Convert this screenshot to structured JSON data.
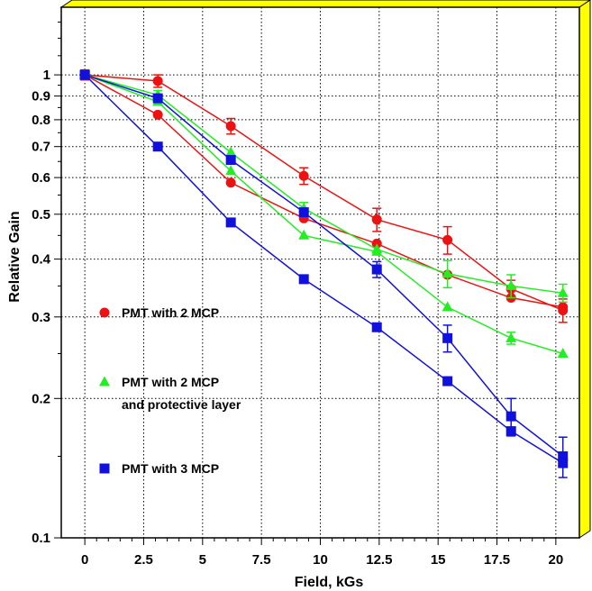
{
  "chart_data": {
    "type": "scatter",
    "title": "",
    "xlabel": "Field, kGs",
    "ylabel": "Relative Gain",
    "xlim": [
      -1,
      21
    ],
    "ylim": [
      0.1,
      1.4
    ],
    "yscale": "log",
    "grid": true,
    "frame_color": "#ffff00",
    "x_ticks": [
      0,
      2.5,
      5,
      7.5,
      10,
      12.5,
      15,
      17.5,
      20
    ],
    "x_tick_labels": [
      "0",
      "2.5",
      "5",
      "7.5",
      "10",
      "12.5",
      "15",
      "17.5",
      "20"
    ],
    "y_ticks": [
      0.1,
      0.2,
      0.3,
      0.4,
      0.5,
      0.6,
      0.7,
      0.8,
      0.9,
      1
    ],
    "y_tick_labels": [
      "0.1",
      "0.2",
      "0.3",
      "0.4",
      "0.5",
      "0.6",
      "0.7",
      "0.8",
      "0.9",
      "1"
    ],
    "legend_entries": [
      {
        "lines": [
          "PMT with 2 MCP"
        ],
        "marker": "circle",
        "color": "#ee1111"
      },
      {
        "lines": [
          "PMT with 2 MCP",
          "and protective layer"
        ],
        "marker": "triangle",
        "color": "#22ee22"
      },
      {
        "lines": [
          "PMT with 3 MCP"
        ],
        "marker": "square",
        "color": "#1111dd"
      }
    ],
    "series": [
      {
        "marker": "circle",
        "color": "#ee1111",
        "points": [
          {
            "x": 0,
            "y": 1.0,
            "err": 0.025
          },
          {
            "x": 3.1,
            "y": 0.97,
            "err": 0.03
          },
          {
            "x": 6.2,
            "y": 0.775,
            "err": 0.03
          },
          {
            "x": 9.3,
            "y": 0.605,
            "err": 0.025
          },
          {
            "x": 12.4,
            "y": 0.487,
            "err": 0.028
          },
          {
            "x": 15.4,
            "y": 0.44,
            "err": 0.03
          },
          {
            "x": 18.1,
            "y": 0.345,
            "err": 0.015
          },
          {
            "x": 20.3,
            "y": 0.31,
            "err": 0.018
          }
        ]
      },
      {
        "marker": "circle",
        "color": "#ee1111",
        "points": [
          {
            "x": 0,
            "y": 1.0
          },
          {
            "x": 3.1,
            "y": 0.82
          },
          {
            "x": 6.2,
            "y": 0.585
          },
          {
            "x": 9.3,
            "y": 0.49
          },
          {
            "x": 12.4,
            "y": 0.432
          },
          {
            "x": 15.4,
            "y": 0.37
          },
          {
            "x": 18.1,
            "y": 0.33
          },
          {
            "x": 20.3,
            "y": 0.315
          }
        ]
      },
      {
        "marker": "triangle",
        "color": "#22ee22",
        "points": [
          {
            "x": 0,
            "y": 1.0
          },
          {
            "x": 3.1,
            "y": 0.905,
            "err": 0.02
          },
          {
            "x": 6.2,
            "y": 0.68
          },
          {
            "x": 9.3,
            "y": 0.515,
            "err": 0.015
          },
          {
            "x": 12.4,
            "y": 0.42
          },
          {
            "x": 15.4,
            "y": 0.372,
            "err": 0.025
          },
          {
            "x": 18.1,
            "y": 0.35,
            "err": 0.02
          },
          {
            "x": 20.3,
            "y": 0.338,
            "err": 0.015
          }
        ]
      },
      {
        "marker": "triangle",
        "color": "#22ee22",
        "points": [
          {
            "x": 0,
            "y": 1.0
          },
          {
            "x": 3.1,
            "y": 0.875
          },
          {
            "x": 6.2,
            "y": 0.62
          },
          {
            "x": 9.3,
            "y": 0.45
          },
          {
            "x": 12.4,
            "y": 0.415
          },
          {
            "x": 15.4,
            "y": 0.315
          },
          {
            "x": 18.1,
            "y": 0.27,
            "err": 0.008
          },
          {
            "x": 20.3,
            "y": 0.25
          }
        ]
      },
      {
        "marker": "square",
        "color": "#1111dd",
        "points": [
          {
            "x": 0,
            "y": 1.0
          },
          {
            "x": 3.1,
            "y": 0.89
          },
          {
            "x": 6.2,
            "y": 0.655
          },
          {
            "x": 9.3,
            "y": 0.505
          },
          {
            "x": 12.4,
            "y": 0.38,
            "err": 0.015
          },
          {
            "x": 15.4,
            "y": 0.27,
            "err": 0.018
          },
          {
            "x": 18.1,
            "y": 0.183,
            "err": 0.017
          },
          {
            "x": 20.3,
            "y": 0.15,
            "err": 0.015
          }
        ]
      },
      {
        "marker": "square",
        "color": "#1111dd",
        "points": [
          {
            "x": 0,
            "y": 1.0
          },
          {
            "x": 3.1,
            "y": 0.7
          },
          {
            "x": 6.2,
            "y": 0.48
          },
          {
            "x": 9.3,
            "y": 0.362
          },
          {
            "x": 12.4,
            "y": 0.285
          },
          {
            "x": 15.4,
            "y": 0.218
          },
          {
            "x": 18.1,
            "y": 0.17
          },
          {
            "x": 20.3,
            "y": 0.145
          }
        ]
      }
    ]
  }
}
